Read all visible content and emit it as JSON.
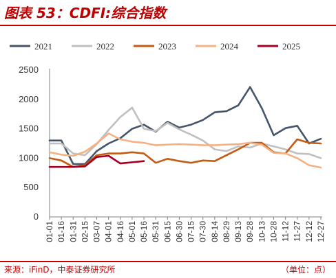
{
  "title": "图表 53：CDFI:综合指数",
  "source": "来源：iFinD，中泰证券研究所",
  "unit": "（单位：点）",
  "chart_data": {
    "type": "line",
    "title": "",
    "xlabel": "",
    "ylabel": "",
    "ylim": [
      0,
      2500
    ],
    "yticks": [
      0,
      500,
      1000,
      1500,
      2000,
      2500
    ],
    "x_tick_labels": [
      "01-01",
      "01-16",
      "01-31",
      "02-15",
      "03-07",
      "04-01",
      "04-16",
      "05-01",
      "05-16",
      "05-31",
      "06-15",
      "06-30",
      "07-15",
      "07-30",
      "08-14",
      "08-29",
      "09-13",
      "09-28",
      "10-13",
      "10-28",
      "11-12",
      "11-27",
      "12-12",
      "12-27"
    ],
    "legend_position": "top",
    "grid": false,
    "series": [
      {
        "name": "2021",
        "color": "#44546a",
        "values": [
          1300,
          1300,
          900,
          900,
          1120,
          1250,
          1340,
          1500,
          1570,
          1450,
          1620,
          1520,
          1570,
          1650,
          1780,
          1800,
          1900,
          2210,
          1850,
          1390,
          1510,
          1550,
          1250,
          1330
        ]
      },
      {
        "name": "2022",
        "color": "#bfbfbf",
        "values": [
          1250,
          1250,
          1080,
          1050,
          1240,
          1480,
          1700,
          1860,
          1500,
          1460,
          1600,
          1490,
          1400,
          1300,
          1150,
          1120,
          1200,
          1180,
          1250,
          1200,
          1150,
          1080,
          1070,
          1000
        ]
      },
      {
        "name": "2023",
        "color": "#c55a11",
        "values": [
          1000,
          960,
          850,
          880,
          1050,
          1080,
          1080,
          1100,
          1080,
          920,
          990,
          950,
          920,
          960,
          950,
          1050,
          1150,
          1260,
          1260,
          1100,
          1080,
          1320,
          1260,
          1250
        ]
      },
      {
        "name": "2024",
        "color": "#f4b183",
        "values": [
          1100,
          1060,
          1040,
          1110,
          1250,
          1420,
          1320,
          1280,
          1260,
          1220,
          1230,
          1240,
          1230,
          1220,
          1220,
          1230,
          1240,
          1260,
          1230,
          1090,
          1080,
          1000,
          880,
          840
        ]
      },
      {
        "name": "2025",
        "color": "#a50021",
        "values": [
          850,
          850,
          850,
          860,
          1020,
          1040,
          910,
          930,
          950,
          null,
          null,
          null,
          null,
          null,
          null,
          null,
          null,
          null,
          null,
          null,
          null,
          null,
          null,
          null
        ]
      }
    ]
  }
}
